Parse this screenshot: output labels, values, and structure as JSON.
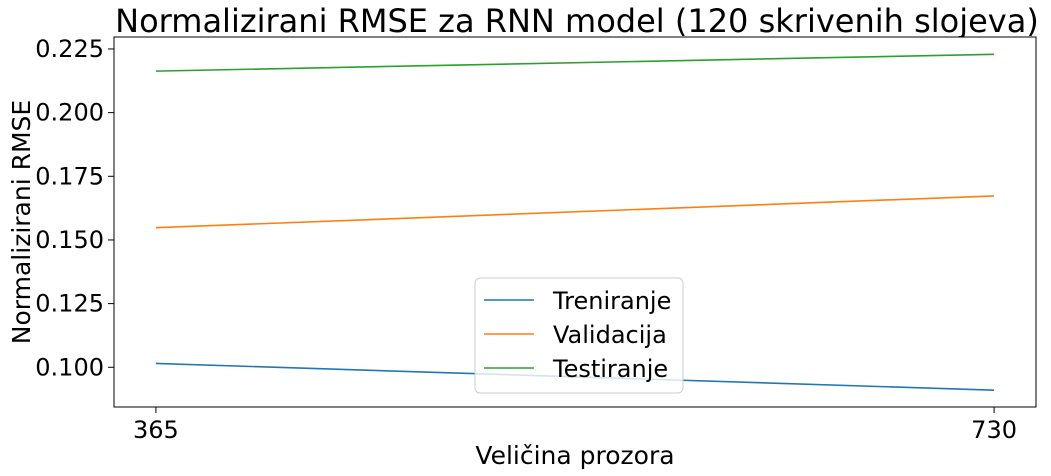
{
  "chart_data": {
    "type": "line",
    "title": "Normalizirani RMSE za RNN model (120 skrivenih slojeva)",
    "xlabel": "Veličina prozora",
    "ylabel": "Normalizirani RMSE",
    "x": [
      365,
      730
    ],
    "x_tick_labels": [
      "365",
      "730"
    ],
    "y_ticks": [
      0.1,
      0.125,
      0.15,
      0.175,
      0.2,
      0.225
    ],
    "y_tick_labels": [
      "0.100",
      "0.125",
      "0.150",
      "0.175",
      "0.200",
      "0.225"
    ],
    "xlim": [
      346.75,
      748.25
    ],
    "ylim": [
      0.0844,
      0.2297
    ],
    "grid": false,
    "legend_position": "lower center",
    "series": [
      {
        "name": "Treniranje",
        "color": "#1f77b4",
        "values": [
          0.1015,
          0.091
        ]
      },
      {
        "name": "Validacija",
        "color": "#ff7f0e",
        "values": [
          0.1548,
          0.1673
        ]
      },
      {
        "name": "Testiranje",
        "color": "#2ca02c",
        "values": [
          0.2163,
          0.2229
        ]
      }
    ]
  }
}
